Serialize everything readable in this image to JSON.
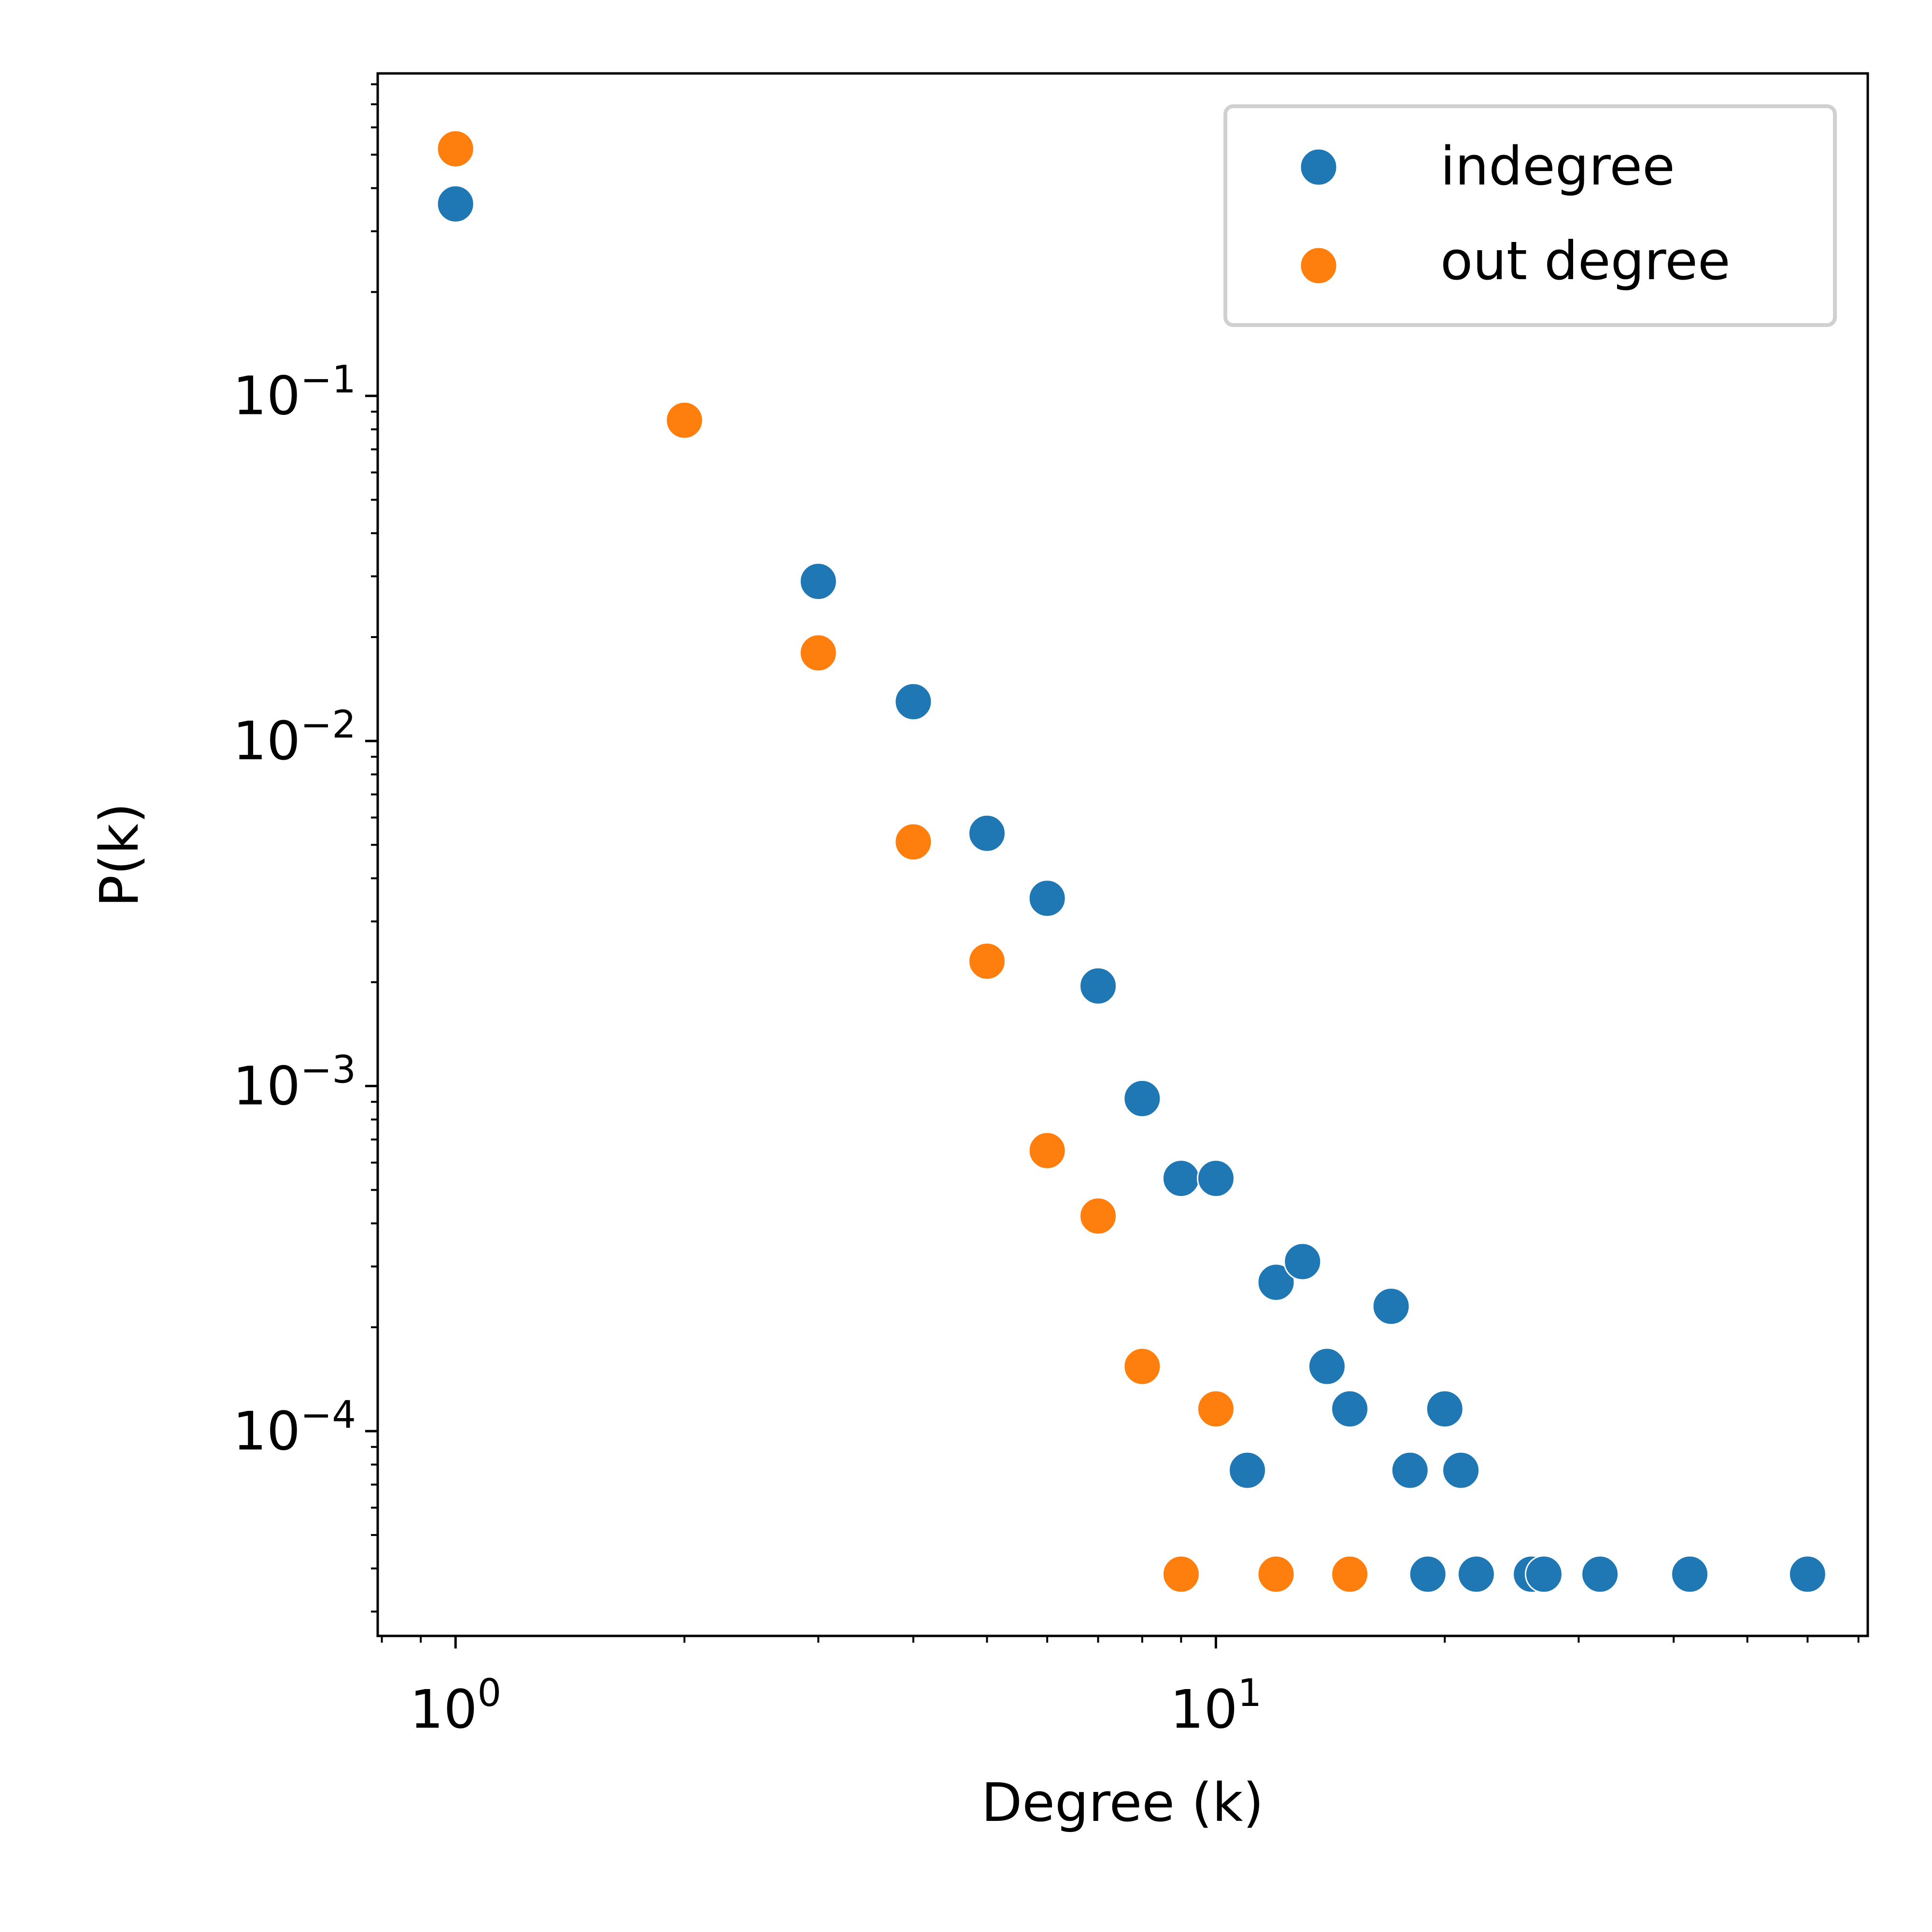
{
  "chart_data": {
    "type": "scatter",
    "title": "",
    "xlabel": "Degree (k)",
    "ylabel": "P(k)",
    "xscale": "log",
    "yscale": "log",
    "xlim": [
      0.79,
      72
    ],
    "ylim": [
      2.55e-05,
      0.86
    ],
    "grid": false,
    "legend_position": "top-right",
    "x_ticks": [
      {
        "value": 1,
        "base": "10",
        "exp": "0"
      },
      {
        "value": 10,
        "base": "10",
        "exp": "1"
      }
    ],
    "y_ticks": [
      {
        "value": 0.1,
        "base": "10",
        "exp": "−1"
      },
      {
        "value": 0.01,
        "base": "10",
        "exp": "−2"
      },
      {
        "value": 0.001,
        "base": "10",
        "exp": "−3"
      },
      {
        "value": 0.0001,
        "base": "10",
        "exp": "−4"
      }
    ],
    "series": [
      {
        "name": "indegree",
        "color": "#1f77b4",
        "x": [
          1,
          3,
          4,
          5,
          6,
          7,
          8,
          9,
          10,
          11,
          12,
          13,
          14,
          15,
          17,
          18,
          19,
          20,
          21,
          22,
          26,
          27,
          32,
          42,
          60
        ],
        "y": [
          0.36,
          0.029,
          0.013,
          0.0054,
          0.0035,
          0.00195,
          0.00092,
          0.00054,
          0.00054,
          7.7e-05,
          0.00027,
          0.00031,
          0.000154,
          0.000116,
          0.00023,
          7.7e-05,
          3.85e-05,
          0.000116,
          7.7e-05,
          3.85e-05,
          3.85e-05,
          3.85e-05,
          3.85e-05,
          3.85e-05,
          3.85e-05
        ]
      },
      {
        "name": "out degree",
        "color": "#ff7f0e",
        "x": [
          1,
          2,
          3,
          4,
          5,
          6,
          7,
          8,
          9,
          10,
          12,
          15
        ],
        "y": [
          0.52,
          0.085,
          0.018,
          0.0051,
          0.0023,
          0.00065,
          0.00042,
          0.000154,
          3.85e-05,
          0.000116,
          3.85e-05,
          3.85e-05
        ]
      }
    ]
  }
}
